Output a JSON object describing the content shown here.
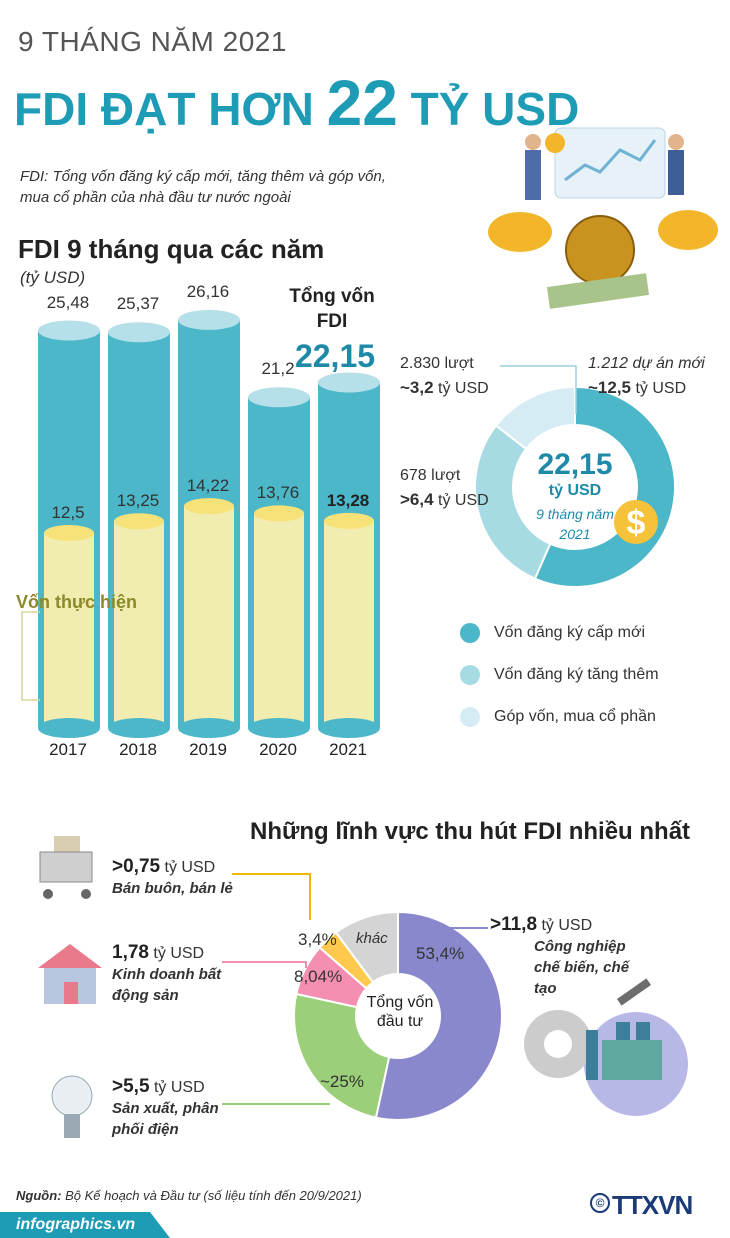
{
  "header": {
    "period": "9 THÁNG NĂM 2021",
    "headline_part1": "FDI ĐẠT HƠN ",
    "headline_number": "22",
    "headline_part2": " TỶ USD",
    "definition": "FDI: Tổng vốn đăng ký cấp mới, tăng thêm và góp vốn, mua cổ phần của nhà đầu tư nước ngoài"
  },
  "bar_section": {
    "title": "FDI 9 tháng qua các năm",
    "unit": "(tỷ USD)",
    "total_label": "Tổng vốn FDI",
    "total_value": "22,15",
    "realized_label": "Vốn thực hiện"
  },
  "donut_section": {
    "total": "22,15",
    "unit": "tỷ USD",
    "subtitle": "9 tháng năm 2021",
    "labels": [
      {
        "count": "1.212 dự án mới",
        "amount": "~12,5",
        "unit": " tỷ USD"
      },
      {
        "count": "2.830 lượt",
        "amount": "~3,2",
        "unit": " tỷ USD"
      },
      {
        "count": "678 lượt",
        "amount": ">6,4",
        "unit": " tỷ USD"
      }
    ],
    "legend": [
      "Vốn đăng ký cấp mới",
      "Vốn đăng ký tăng thêm",
      "Góp vốn, mua cổ phần"
    ],
    "colors": [
      "#4bb7c9",
      "#a6dbe3",
      "#d6ecf5"
    ]
  },
  "sector_section": {
    "title": "Những lĩnh vực thu hút FDI nhiều nhất",
    "center": "Tổng vốn đầu tư",
    "sectors": [
      {
        "value": ">11,8",
        "unit": " tỷ USD",
        "name": "Công nghiệp chế biến, chế tạo"
      },
      {
        "value": ">5,5",
        "unit": " tỷ USD",
        "name": "Sản xuất, phân phối điện"
      },
      {
        "value": "1,78",
        "unit": " tỷ USD",
        "name": "Kinh doanh bất động sản"
      },
      {
        "value": ">0,75",
        "unit": " tỷ USD",
        "name": "Bán buôn, bán lẻ"
      }
    ],
    "pct_labels": [
      "53,4%",
      "~25%",
      "8,04%",
      "3,4%",
      "khác"
    ],
    "colors": [
      "#8a88cc",
      "#9ccf7a",
      "#f48fb1",
      "#ffc94d",
      "#d4d4d4"
    ]
  },
  "footer": {
    "source_label": "Nguồn:",
    "source_text": " Bộ Kế hoạch và Đầu tư (số liệu tính đến 20/9/2021)",
    "site": "infographics.vn",
    "copyright": "©",
    "logo": "TTXVN"
  },
  "chart_data": [
    {
      "type": "bar",
      "categories": [
        "2017",
        "2018",
        "2019",
        "2020",
        "2021"
      ],
      "series": [
        {
          "name": "",
          "values": [
            25.48,
            25.37,
            26.16,
            21.2,
            22.15
          ]
        },
        {
          "name": "Vốn thực hiện",
          "values": [
            12.5,
            13.25,
            14.22,
            13.76,
            13.28
          ]
        }
      ],
      "value_labels": [
        [
          "25,48",
          "25,37",
          "26,16",
          "21,2",
          "22,15"
        ],
        [
          "12,5",
          "13,25",
          "14,22",
          "13,76",
          "13,28"
        ]
      ],
      "title": "FDI 9 tháng qua các năm",
      "ylabel": "(tỷ USD)"
    },
    {
      "type": "pie",
      "categories": [
        "Vốn đăng ký cấp mới",
        "Vốn đăng ký tăng thêm",
        "Góp vốn, mua cổ phần"
      ],
      "values": [
        12.5,
        6.4,
        3.2
      ]
    },
    {
      "type": "pie",
      "categories": [
        "Công nghiệp chế biến, chế tạo",
        "Sản xuất, phân phối điện",
        "Kinh doanh bất động sản",
        "Bán buôn, bán lẻ",
        "khác"
      ],
      "values": [
        53.4,
        25,
        8.04,
        3.4,
        10.16
      ]
    }
  ]
}
